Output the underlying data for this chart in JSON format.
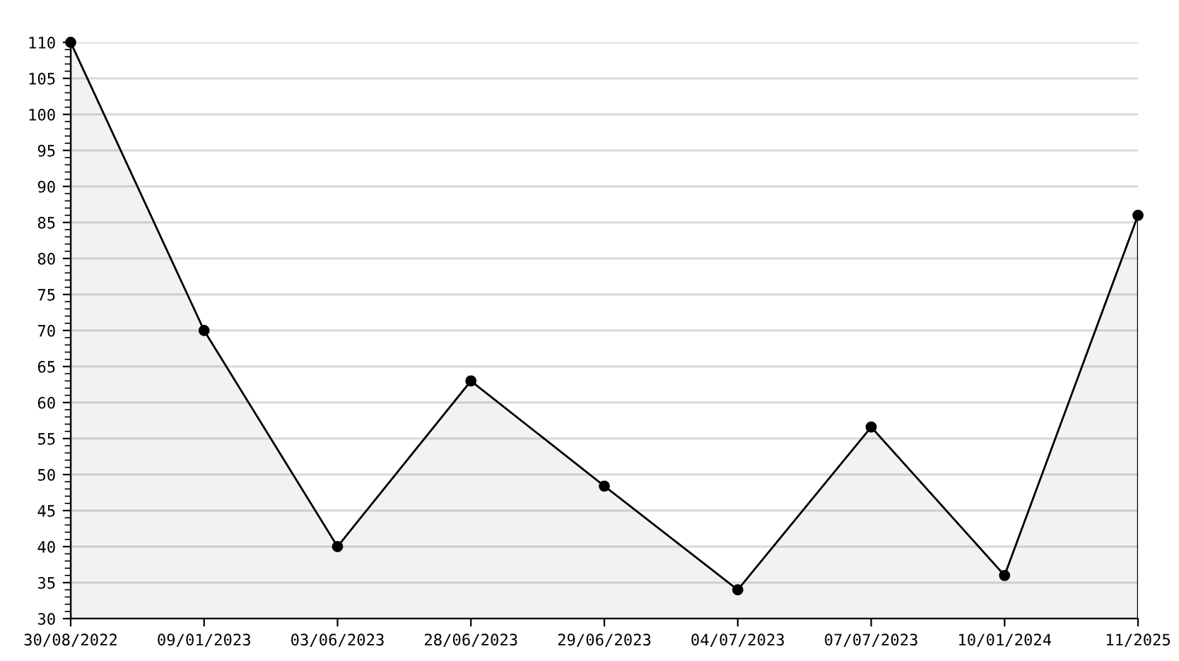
{
  "chart_data": {
    "type": "area",
    "categories": [
      "30/08/2022",
      "09/01/2023",
      "03/06/2023",
      "28/06/2023",
      "29/06/2023",
      "04/07/2023",
      "07/07/2023",
      "10/01/2024",
      "11/2025"
    ],
    "series": [
      {
        "color": "#000000",
        "values": [
          110,
          70,
          40,
          63,
          48.4,
          34,
          56.6,
          36,
          86
        ]
      }
    ],
    "ylim": [
      30,
      110
    ],
    "yticks": [
      30,
      35,
      40,
      45,
      50,
      55,
      60,
      65,
      70,
      75,
      80,
      85,
      90,
      95,
      100,
      105,
      110
    ],
    "grid": "y",
    "marker": "circle",
    "line_style": "solid"
  }
}
